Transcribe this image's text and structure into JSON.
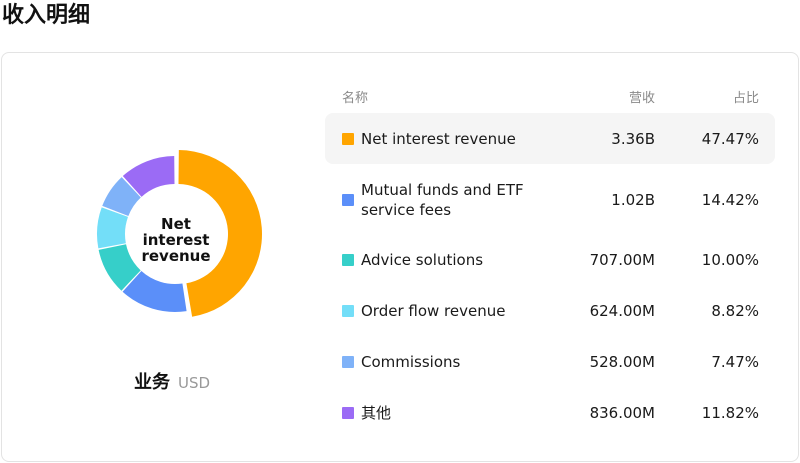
{
  "page": {
    "title": "收入明细"
  },
  "table": {
    "headers": {
      "name": "名称",
      "revenue": "营收",
      "share": "占比"
    },
    "rows": [
      {
        "name": "Net interest revenue",
        "revenue": "3.36B",
        "share": "47.47%",
        "color": "#FFA500"
      },
      {
        "name": "Mutual funds and ETF service fees",
        "revenue": "1.02B",
        "share": "14.42%",
        "color": "#5B8FF9"
      },
      {
        "name": "Advice solutions",
        "revenue": "707.00M",
        "share": "10.00%",
        "color": "#36CFC9"
      },
      {
        "name": "Order flow revenue",
        "revenue": "624.00M",
        "share": "8.82%",
        "color": "#73DEF8"
      },
      {
        "name": "Commissions",
        "revenue": "528.00M",
        "share": "7.47%",
        "color": "#7FB2F8"
      },
      {
        "name": "其他",
        "revenue": "836.00M",
        "share": "11.82%",
        "color": "#9B6BF5"
      }
    ]
  },
  "donut": {
    "center_label": "Net interest revenue",
    "caption": "业务",
    "unit": "USD"
  },
  "chart_data": {
    "type": "pie",
    "categories": [
      "Net interest revenue",
      "Mutual funds and ETF service fees",
      "Advice solutions",
      "Order flow revenue",
      "Commissions",
      "其他"
    ],
    "values": [
      47.47,
      14.42,
      10.0,
      8.82,
      7.47,
      11.82
    ],
    "colors": [
      "#FFA500",
      "#5B8FF9",
      "#36CFC9",
      "#73DEF8",
      "#7FB2F8",
      "#9B6BF5"
    ],
    "highlighted": "Net interest revenue"
  }
}
